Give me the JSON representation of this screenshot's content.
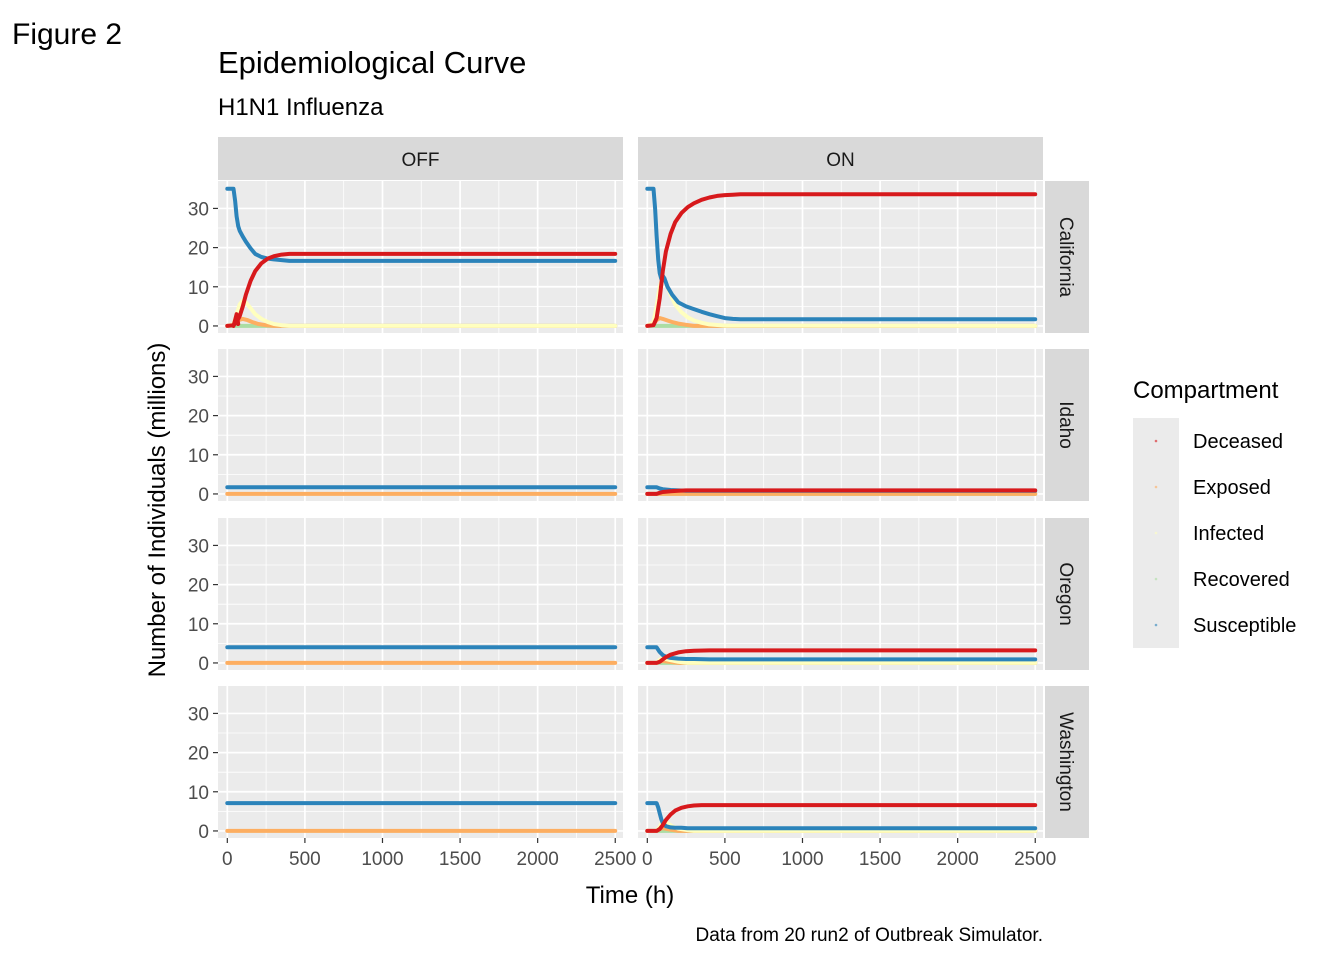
{
  "figure_label": "Figure 2",
  "chart_data": {
    "type": "line",
    "title": "Epidemiological Curve",
    "subtitle": "H1N1 Influenza",
    "xlabel": "Time (h)",
    "ylabel": "Number of Individuals (millions)",
    "caption": "Data from 20 run2 of Outbreak Simulator.",
    "xlim": [
      -60,
      2550
    ],
    "ylim": [
      -1.8,
      37
    ],
    "x_ticks": [
      0,
      500,
      1000,
      1500,
      2000,
      2500
    ],
    "y_ticks": [
      0,
      10,
      20,
      30
    ],
    "grid": true,
    "legend_position": "right",
    "legend_title": "Compartment",
    "legend": [
      {
        "name": "Deceased",
        "color": "#d7191c"
      },
      {
        "name": "Exposed",
        "color": "#fdae61"
      },
      {
        "name": "Infected",
        "color": "#ffffbf"
      },
      {
        "name": "Recovered",
        "color": "#abdda4"
      },
      {
        "name": "Susceptible",
        "color": "#2b83ba"
      }
    ],
    "columns": [
      "OFF",
      "ON"
    ],
    "rows": [
      "California",
      "Idaho",
      "Oregon",
      "Washington"
    ],
    "panels": [
      {
        "row": "California",
        "col": "OFF",
        "series": [
          {
            "compartment": "Recovered",
            "color": "#abdda4",
            "x": [
              0,
              2500
            ],
            "y": [
              0,
              0
            ]
          },
          {
            "compartment": "Exposed",
            "color": "#fdae61",
            "x": [
              0,
              40,
              60,
              80,
              100,
              130,
              160,
              200,
              250,
              300,
              2500
            ],
            "y": [
              0,
              0.3,
              1.0,
              1.6,
              1.8,
              1.5,
              1.0,
              0.5,
              0.2,
              0,
              0
            ]
          },
          {
            "compartment": "Infected",
            "color": "#ffffbf",
            "x": [
              0,
              40,
              60,
              80,
              100,
              120,
              150,
              180,
              220,
              260,
              300,
              350,
              400,
              2500
            ],
            "y": [
              0,
              0.5,
              3.0,
              5.5,
              6.5,
              6.0,
              4.5,
              3.0,
              1.8,
              1.0,
              0.5,
              0.2,
              0,
              0
            ]
          },
          {
            "compartment": "Susceptible",
            "color": "#2b83ba",
            "x": [
              0,
              40,
              50,
              60,
              70,
              80,
              100,
              120,
              150,
              180,
              220,
              260,
              300,
              350,
              400,
              2500
            ],
            "y": [
              35,
              35,
              32,
              28,
              25.5,
              24.3,
              22.8,
              21.5,
              19.8,
              18.4,
              17.6,
              17.2,
              17.0,
              16.8,
              16.6,
              16.6
            ]
          },
          {
            "compartment": "Deceased",
            "color": "#d7191c",
            "x": [
              0,
              40,
              60,
              80,
              100,
              120,
              150,
              180,
              220,
              260,
              300,
              350,
              400,
              2500
            ],
            "y": [
              0,
              0.2,
              1.0,
              2.5,
              5.0,
              8.0,
              11.5,
              14.0,
              16.0,
              17.2,
              17.8,
              18.2,
              18.4,
              18.4
            ]
          },
          {
            "compartment": "Deceased",
            "color": "#d7191c",
            "x": [
              40,
              50,
              60,
              70
            ],
            "y": [
              0,
              1.5,
              3.0,
              0.5
            ]
          }
        ]
      },
      {
        "row": "California",
        "col": "ON",
        "series": [
          {
            "compartment": "Recovered",
            "color": "#abdda4",
            "x": [
              0,
              2500
            ],
            "y": [
              0,
              0
            ]
          },
          {
            "compartment": "Exposed",
            "color": "#fdae61",
            "x": [
              0,
              40,
              60,
              80,
              100,
              130,
              160,
              200,
              250,
              300,
              2500
            ],
            "y": [
              0,
              0.5,
              1.5,
              2.0,
              1.8,
              1.4,
              1.0,
              0.6,
              0.3,
              0,
              0
            ]
          },
          {
            "compartment": "Infected",
            "color": "#ffffbf",
            "x": [
              0,
              40,
              60,
              80,
              100,
              120,
              150,
              180,
              220,
              260,
              300,
              350,
              400,
              500,
              2500
            ],
            "y": [
              0,
              1.0,
              5.0,
              10.0,
              12.5,
              11.0,
              8.0,
              5.5,
              3.5,
              2.2,
              1.4,
              0.8,
              0.4,
              0.1,
              0
            ]
          },
          {
            "compartment": "Susceptible",
            "color": "#2b83ba",
            "x": [
              0,
              40,
              50,
              60,
              70,
              80,
              90,
              100,
              110,
              130,
              160,
              200,
              250,
              300,
              350,
              400,
              450,
              500,
              550,
              600,
              2500
            ],
            "y": [
              35,
              35,
              30,
              23,
              17,
              13.5,
              12,
              12.8,
              12.2,
              10,
              8,
              6,
              5,
              4.3,
              3.6,
              3.0,
              2.5,
              2.0,
              1.8,
              1.7,
              1.7
            ]
          },
          {
            "compartment": "Deceased",
            "color": "#d7191c",
            "x": [
              0,
              40,
              60,
              80,
              100,
              120,
              150,
              180,
              220,
              260,
              300,
              350,
              400,
              450,
              500,
              550,
              600,
              650,
              700,
              2500
            ],
            "y": [
              0,
              0.2,
              2.0,
              7.0,
              14.0,
              19.0,
              23.5,
              26.5,
              28.8,
              30.3,
              31.3,
              32.2,
              32.8,
              33.2,
              33.4,
              33.5,
              33.6,
              33.6,
              33.6,
              33.6
            ]
          }
        ]
      },
      {
        "row": "Idaho",
        "col": "OFF",
        "series": [
          {
            "compartment": "Exposed",
            "color": "#fdae61",
            "x": [
              0,
              2500
            ],
            "y": [
              0,
              0
            ]
          },
          {
            "compartment": "Susceptible",
            "color": "#2b83ba",
            "x": [
              0,
              2500
            ],
            "y": [
              1.7,
              1.7
            ]
          }
        ]
      },
      {
        "row": "Idaho",
        "col": "ON",
        "series": [
          {
            "compartment": "Recovered",
            "color": "#abdda4",
            "x": [
              0,
              2500
            ],
            "y": [
              0,
              0
            ]
          },
          {
            "compartment": "Exposed",
            "color": "#fdae61",
            "x": [
              0,
              2500
            ],
            "y": [
              0,
              0
            ]
          },
          {
            "compartment": "Susceptible",
            "color": "#2b83ba",
            "x": [
              0,
              60,
              80,
              100,
              150,
              200,
              250,
              300,
              2500
            ],
            "y": [
              1.7,
              1.7,
              1.4,
              1.2,
              1.0,
              0.9,
              0.8,
              0.8,
              0.8
            ]
          },
          {
            "compartment": "Deceased",
            "color": "#d7191c",
            "x": [
              0,
              60,
              80,
              100,
              150,
              200,
              250,
              300,
              2500
            ],
            "y": [
              0,
              0,
              0.3,
              0.5,
              0.7,
              0.8,
              0.9,
              0.9,
              0.9
            ]
          }
        ]
      },
      {
        "row": "Oregon",
        "col": "OFF",
        "series": [
          {
            "compartment": "Exposed",
            "color": "#fdae61",
            "x": [
              0,
              2500
            ],
            "y": [
              0,
              0
            ]
          },
          {
            "compartment": "Susceptible",
            "color": "#2b83ba",
            "x": [
              0,
              2500
            ],
            "y": [
              4.0,
              4.0
            ]
          }
        ]
      },
      {
        "row": "Oregon",
        "col": "ON",
        "series": [
          {
            "compartment": "Recovered",
            "color": "#abdda4",
            "x": [
              0,
              2500
            ],
            "y": [
              0,
              0
            ]
          },
          {
            "compartment": "Exposed",
            "color": "#fdae61",
            "x": [
              0,
              60,
              80,
              100,
              140,
              200,
              2500
            ],
            "y": [
              0,
              0,
              0.4,
              0.5,
              0.3,
              0,
              0
            ]
          },
          {
            "compartment": "Infected",
            "color": "#ffffbf",
            "x": [
              0,
              60,
              80,
              100,
              140,
              200,
              260,
              2500
            ],
            "y": [
              0,
              0,
              0.8,
              1.2,
              0.8,
              0.3,
              0,
              0
            ]
          },
          {
            "compartment": "Susceptible",
            "color": "#2b83ba",
            "x": [
              0,
              60,
              80,
              100,
              120,
              150,
              200,
              250,
              300,
              400,
              500,
              2500
            ],
            "y": [
              4.0,
              4.0,
              2.8,
              2.0,
              1.6,
              1.3,
              1.1,
              1.0,
              1.0,
              0.9,
              0.9,
              0.9
            ]
          },
          {
            "compartment": "Deceased",
            "color": "#d7191c",
            "x": [
              0,
              60,
              80,
              100,
              120,
              150,
              200,
              250,
              300,
              400,
              500,
              2500
            ],
            "y": [
              0,
              0,
              0.3,
              0.9,
              1.5,
              2.1,
              2.7,
              3.0,
              3.1,
              3.2,
              3.2,
              3.2
            ]
          }
        ]
      },
      {
        "row": "Washington",
        "col": "OFF",
        "series": [
          {
            "compartment": "Exposed",
            "color": "#fdae61",
            "x": [
              0,
              2500
            ],
            "y": [
              0,
              0
            ]
          },
          {
            "compartment": "Susceptible",
            "color": "#2b83ba",
            "x": [
              0,
              2500
            ],
            "y": [
              7.1,
              7.1
            ]
          }
        ]
      },
      {
        "row": "Washington",
        "col": "ON",
        "series": [
          {
            "compartment": "Recovered",
            "color": "#abdda4",
            "x": [
              0,
              2500
            ],
            "y": [
              0,
              0
            ]
          },
          {
            "compartment": "Exposed",
            "color": "#fdae61",
            "x": [
              0,
              60,
              80,
              100,
              140,
              200,
              2500
            ],
            "y": [
              0,
              0,
              0.5,
              0.7,
              0.4,
              0,
              0
            ]
          },
          {
            "compartment": "Infected",
            "color": "#ffffbf",
            "x": [
              0,
              60,
              80,
              100,
              130,
              160,
              200,
              260,
              300,
              2500
            ],
            "y": [
              0,
              0,
              1.0,
              2.5,
              2.0,
              1.2,
              0.6,
              0.2,
              0,
              0
            ]
          },
          {
            "compartment": "Susceptible",
            "color": "#2b83ba",
            "x": [
              0,
              60,
              70,
              80,
              90,
              100,
              120,
              150,
              180,
              220,
              260,
              300,
              400,
              2500
            ],
            "y": [
              7.1,
              7.1,
              6.0,
              4.5,
              3.0,
              2.0,
              1.2,
              0.9,
              0.8,
              0.8,
              0.7,
              0.7,
              0.7,
              0.7
            ]
          },
          {
            "compartment": "Deceased",
            "color": "#d7191c",
            "x": [
              0,
              60,
              80,
              100,
              120,
              150,
              180,
              220,
              260,
              300,
              350,
              400,
              500,
              2500
            ],
            "y": [
              0,
              0,
              0.5,
              1.5,
              2.8,
              4.2,
              5.2,
              5.9,
              6.3,
              6.5,
              6.6,
              6.6,
              6.6,
              6.6
            ]
          }
        ]
      }
    ]
  }
}
